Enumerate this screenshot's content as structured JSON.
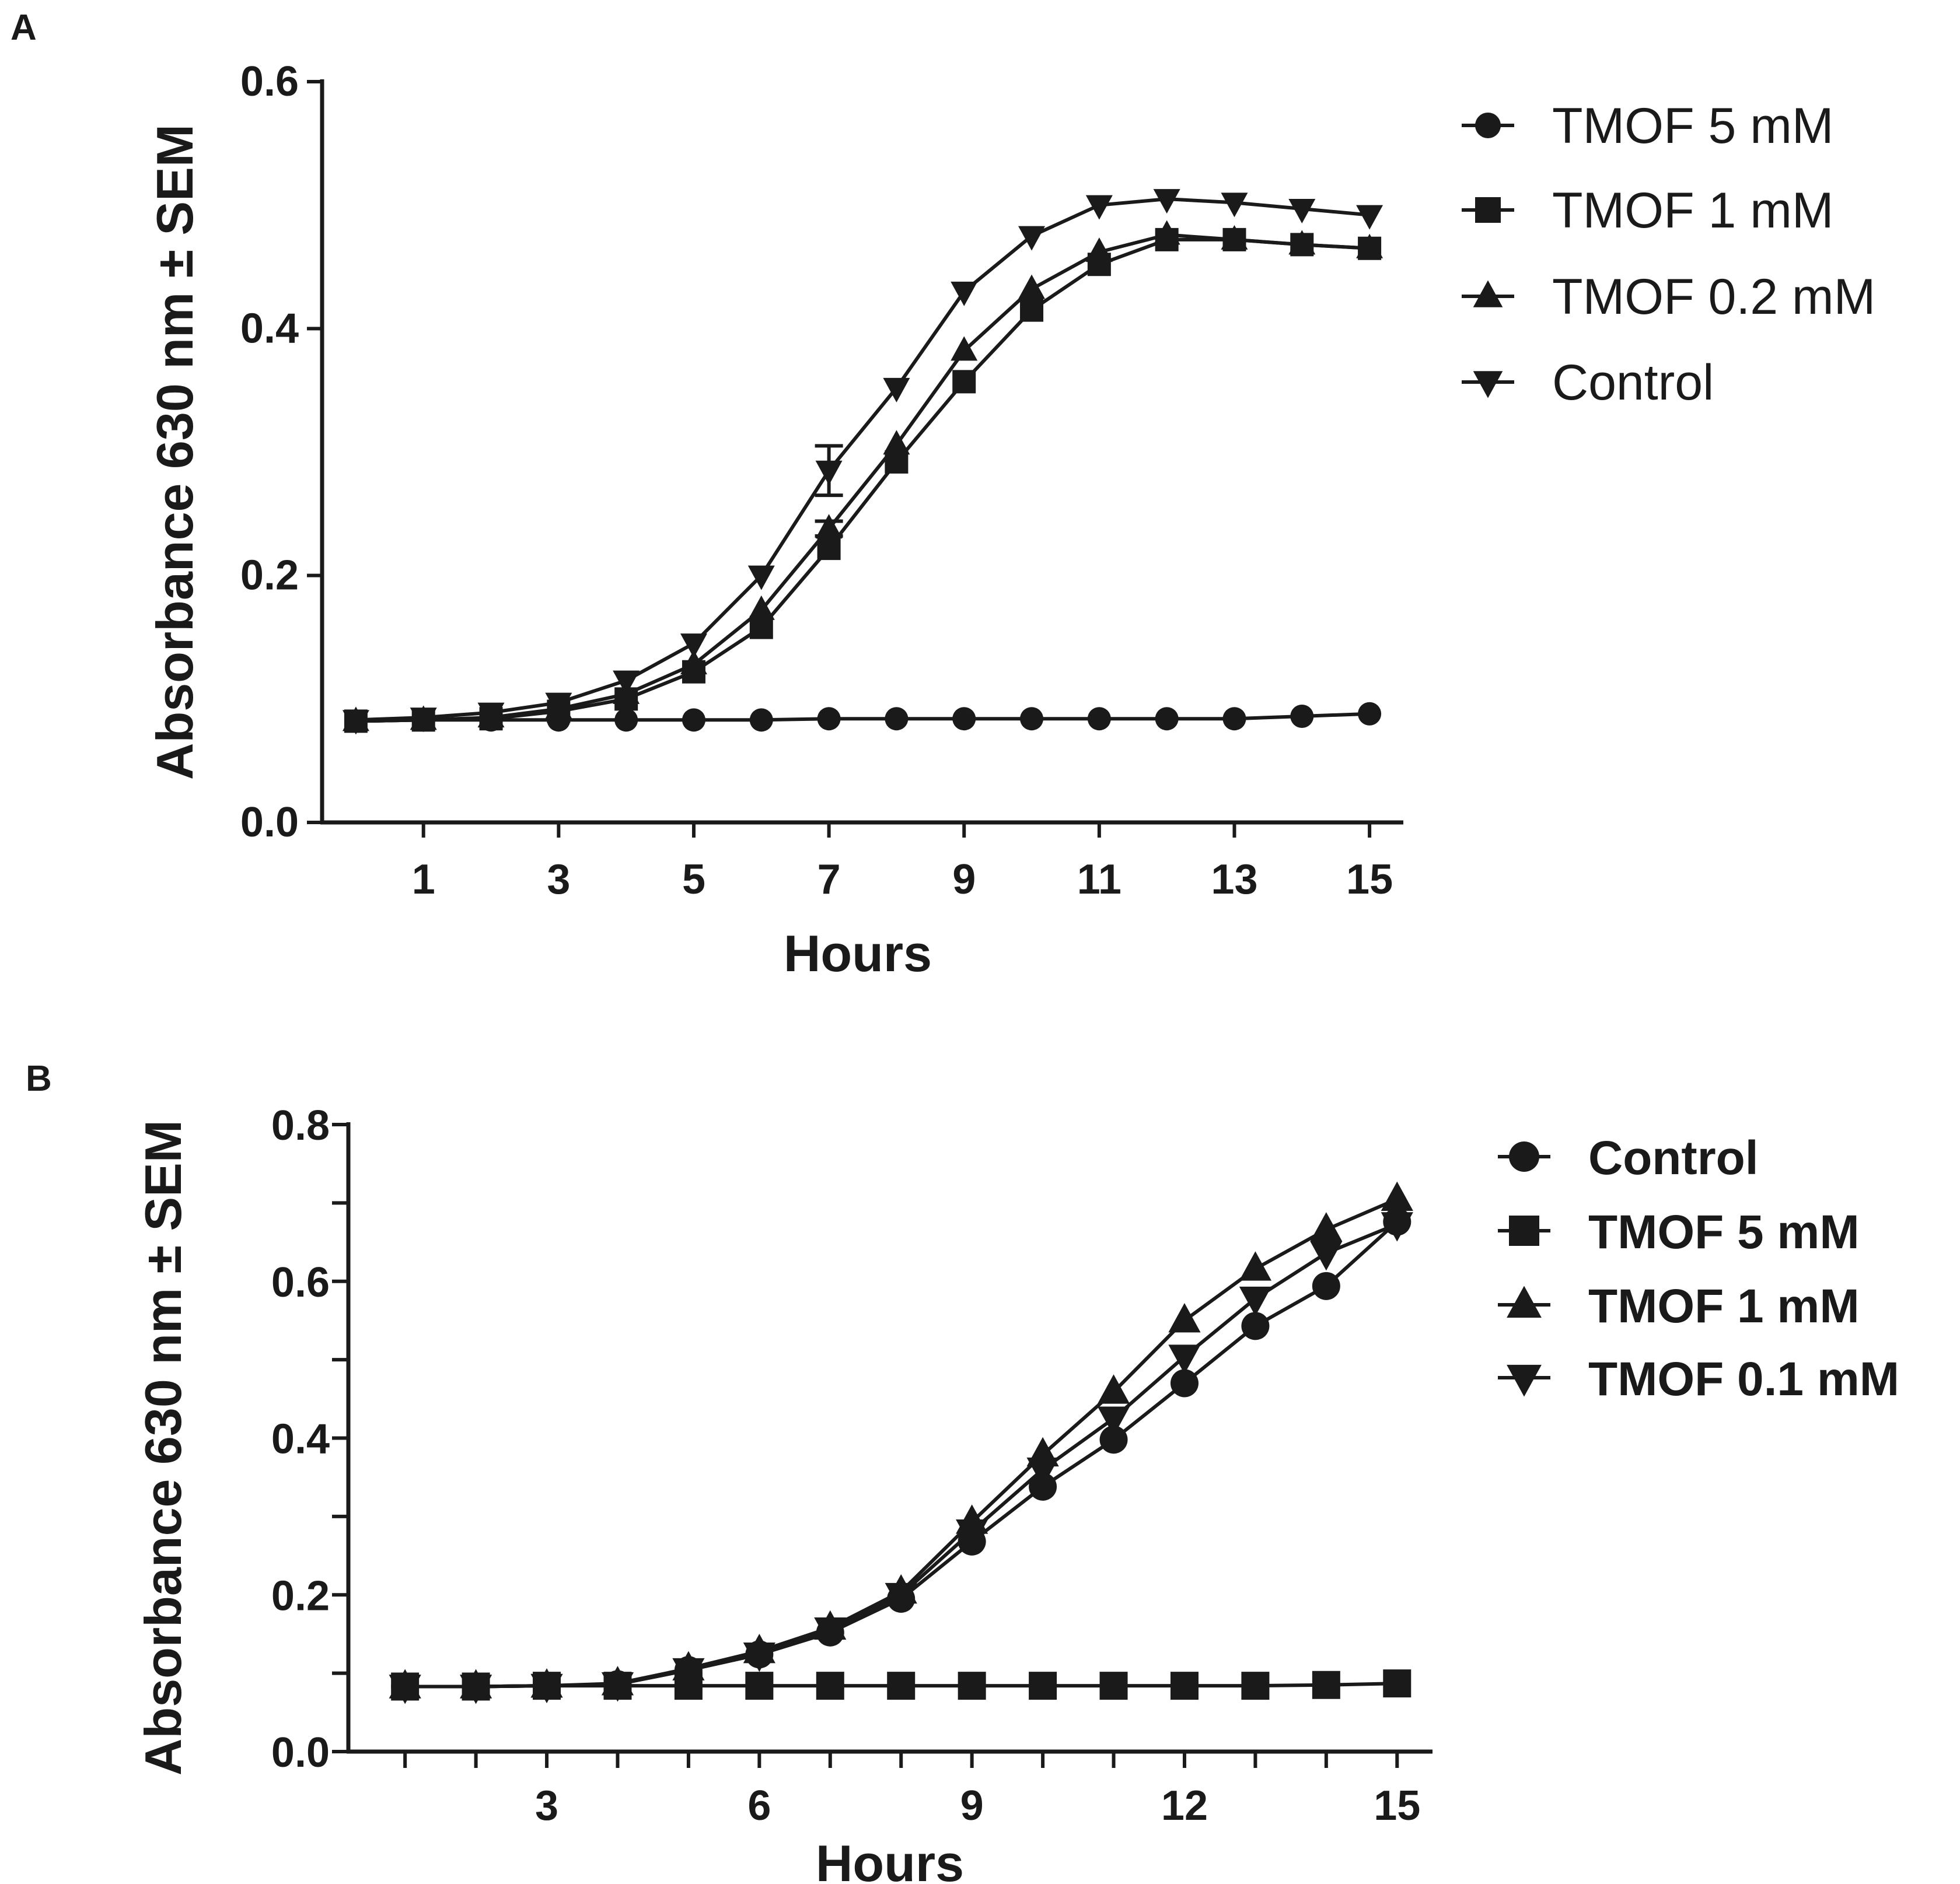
{
  "chart_data": [
    {
      "panel": "A",
      "type": "line",
      "title": "",
      "xlabel": "Hours",
      "ylabel": "Absorbance 630 nm  ± SEM",
      "xlim": [
        -0.5,
        15.5
      ],
      "ylim": [
        0,
        0.6
      ],
      "xticks": [
        1,
        3,
        5,
        7,
        9,
        11,
        13,
        15
      ],
      "xtick_labels": [
        "1",
        "3",
        "5",
        "7",
        "9",
        "11",
        "13",
        "15"
      ],
      "yticks": [
        0.0,
        0.2,
        0.4,
        0.6
      ],
      "ytick_labels": [
        "0.0",
        "0.2",
        "0.4",
        "0.6"
      ],
      "legend_position": "top-right",
      "x": [
        0,
        1,
        2,
        3,
        4,
        5,
        6,
        7,
        8,
        9,
        10,
        11,
        12,
        13,
        14,
        15
      ],
      "series": [
        {
          "name": "TMOF 5 mM",
          "marker": "circle",
          "values": [
            0.082,
            0.083,
            0.083,
            0.083,
            0.083,
            0.083,
            0.083,
            0.084,
            0.084,
            0.084,
            0.084,
            0.084,
            0.084,
            0.084,
            0.086,
            0.088
          ]
        },
        {
          "name": "TMOF 1 mM",
          "marker": "square",
          "values": [
            0.082,
            0.083,
            0.084,
            0.09,
            0.1,
            0.122,
            0.158,
            0.222,
            0.292,
            0.357,
            0.415,
            0.452,
            0.472,
            0.472,
            0.468,
            0.465
          ]
        },
        {
          "name": "TMOF 0.2 mM",
          "marker": "triangle-up",
          "values": [
            0.082,
            0.083,
            0.085,
            0.092,
            0.104,
            0.128,
            0.172,
            0.238,
            0.306,
            0.382,
            0.432,
            0.462,
            0.476,
            0.472,
            0.468,
            0.465
          ],
          "errors": [
            0,
            0,
            0,
            0,
            0,
            0,
            0,
            0.006,
            0,
            0,
            0,
            0,
            0,
            0,
            0,
            0
          ]
        },
        {
          "name": "Control",
          "marker": "triangle-down",
          "values": [
            0.083,
            0.085,
            0.089,
            0.097,
            0.115,
            0.145,
            0.2,
            0.285,
            0.352,
            0.43,
            0.475,
            0.5,
            0.505,
            0.502,
            0.497,
            0.492
          ],
          "errors": [
            0,
            0,
            0,
            0,
            0,
            0,
            0,
            0.02,
            0,
            0,
            0,
            0,
            0,
            0,
            0,
            0
          ]
        }
      ]
    },
    {
      "panel": "B",
      "type": "line",
      "title": "",
      "xlabel": "Hours",
      "ylabel": "Absorbance 630 nm  ± SEM",
      "xlim": [
        0.2,
        15.5
      ],
      "ylim": [
        0,
        0.8
      ],
      "xticks": [
        1,
        2,
        3,
        4,
        5,
        6,
        7,
        8,
        9,
        10,
        11,
        12,
        13,
        14,
        15
      ],
      "xtick_labels": [
        "",
        "",
        "3",
        "",
        "",
        "6",
        "",
        "",
        "9",
        "",
        "",
        "12",
        "",
        "",
        "15"
      ],
      "yticks": [
        0.0,
        0.1,
        0.2,
        0.3,
        0.4,
        0.5,
        0.6,
        0.7,
        0.8
      ],
      "ytick_labels": [
        "0.0",
        "",
        "0.2",
        "",
        "0.4",
        "",
        "0.6",
        "",
        "0.8"
      ],
      "legend_position": "top-right",
      "x": [
        1,
        2,
        3,
        4,
        5,
        6,
        7,
        8,
        9,
        10,
        11,
        12,
        13,
        14,
        15
      ],
      "series": [
        {
          "name": "Control",
          "marker": "circle",
          "values": [
            0.083,
            0.083,
            0.084,
            0.086,
            0.104,
            0.124,
            0.152,
            0.195,
            0.268,
            0.338,
            0.398,
            0.47,
            0.543,
            0.594,
            0.676
          ]
        },
        {
          "name": "TMOF 5 mM",
          "marker": "square",
          "values": [
            0.083,
            0.083,
            0.084,
            0.084,
            0.084,
            0.084,
            0.084,
            0.084,
            0.084,
            0.084,
            0.084,
            0.084,
            0.084,
            0.085,
            0.087
          ]
        },
        {
          "name": "TMOF 1 mM",
          "marker": "triangle-up",
          "values": [
            0.083,
            0.083,
            0.084,
            0.087,
            0.106,
            0.128,
            0.158,
            0.204,
            0.293,
            0.379,
            0.459,
            0.55,
            0.616,
            0.666,
            0.705
          ]
        },
        {
          "name": "TMOF 0.1 mM",
          "marker": "triangle-down",
          "values": [
            0.083,
            0.083,
            0.084,
            0.086,
            0.104,
            0.124,
            0.156,
            0.2,
            0.281,
            0.36,
            0.425,
            0.504,
            0.578,
            0.636,
            0.673
          ]
        }
      ]
    }
  ]
}
